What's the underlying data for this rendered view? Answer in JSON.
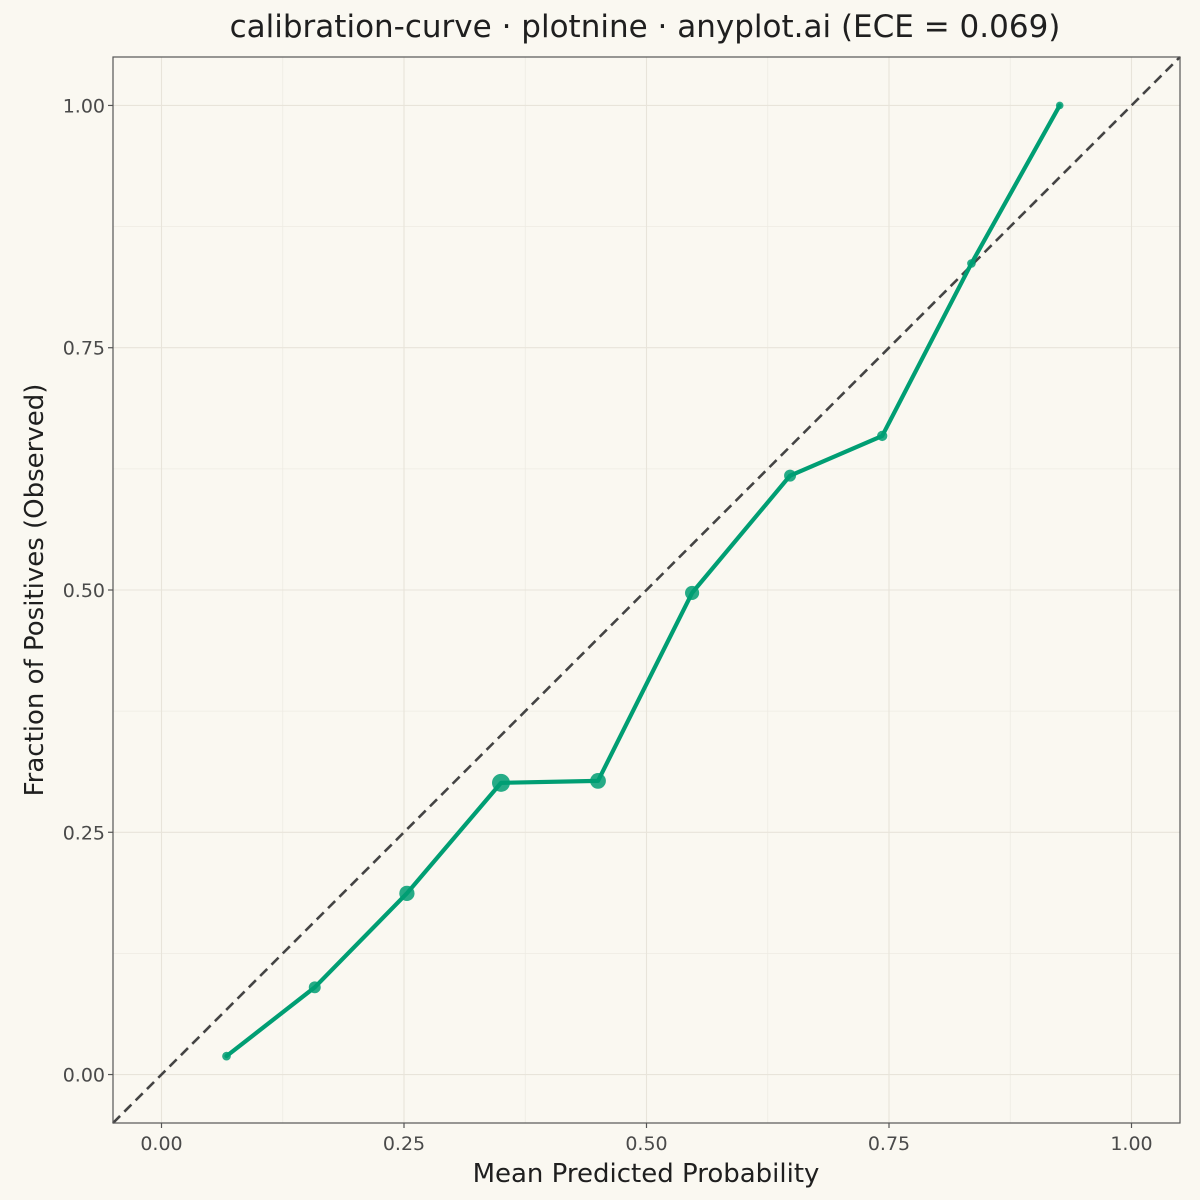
{
  "chart_data": {
    "type": "line",
    "title": "calibration-curve · plotnine · anyplot.ai (ECE = 0.069)",
    "xlabel": "Mean Predicted Probability",
    "ylabel": "Fraction of Positives (Observed)",
    "xlim": [
      -0.05,
      1.05
    ],
    "ylim": [
      -0.05,
      1.05
    ],
    "x_ticks": [
      {
        "value": 0.0,
        "label": "0.00"
      },
      {
        "value": 0.25,
        "label": "0.25"
      },
      {
        "value": 0.5,
        "label": "0.50"
      },
      {
        "value": 0.75,
        "label": "0.75"
      },
      {
        "value": 1.0,
        "label": "1.00"
      }
    ],
    "y_ticks": [
      {
        "value": 0.0,
        "label": "0.00"
      },
      {
        "value": 0.25,
        "label": "0.25"
      },
      {
        "value": 0.5,
        "label": "0.50"
      },
      {
        "value": 0.75,
        "label": "0.75"
      },
      {
        "value": 1.0,
        "label": "1.00"
      }
    ],
    "grid": true,
    "legend": "none",
    "reference_line": {
      "style": "dashed",
      "from": [
        -0.05,
        -0.05
      ],
      "to": [
        1.05,
        1.05
      ],
      "color": "#444444"
    },
    "series": [
      {
        "color": "#009E73",
        "points": [
          {
            "x": 0.067,
            "y": 0.019,
            "relative_count": 0.15
          },
          {
            "x": 0.158,
            "y": 0.09,
            "relative_count": 0.45
          },
          {
            "x": 0.253,
            "y": 0.187,
            "relative_count": 0.75
          },
          {
            "x": 0.35,
            "y": 0.301,
            "relative_count": 1.0
          },
          {
            "x": 0.45,
            "y": 0.303,
            "relative_count": 0.8
          },
          {
            "x": 0.547,
            "y": 0.497,
            "relative_count": 0.65
          },
          {
            "x": 0.648,
            "y": 0.618,
            "relative_count": 0.45
          },
          {
            "x": 0.743,
            "y": 0.659,
            "relative_count": 0.3
          },
          {
            "x": 0.835,
            "y": 0.837,
            "relative_count": 0.15
          },
          {
            "x": 0.926,
            "y": 1.0,
            "relative_count": 0.05
          }
        ]
      }
    ]
  }
}
